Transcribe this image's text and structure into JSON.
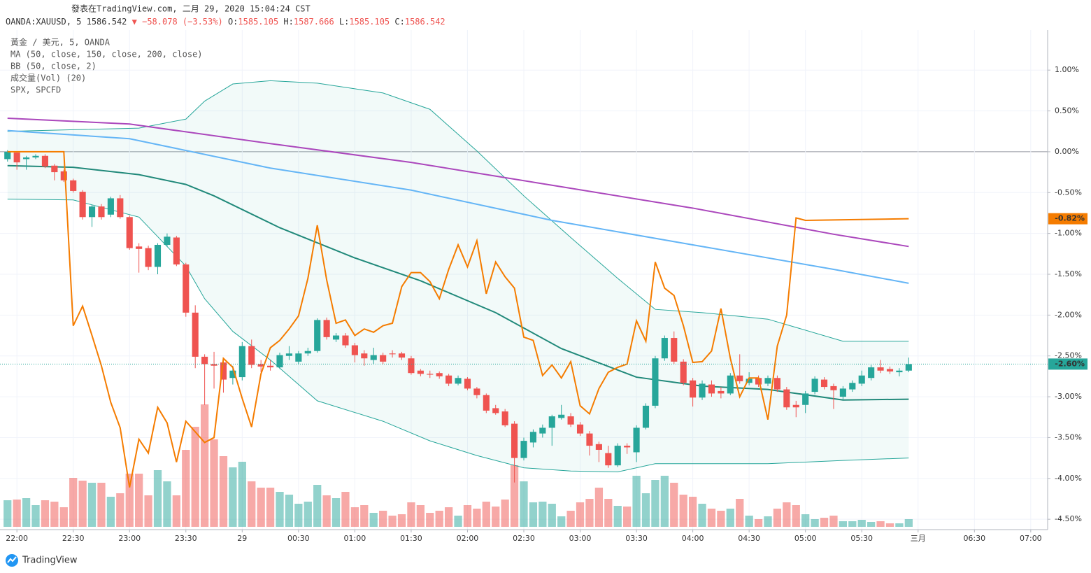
{
  "chart_data": {
    "type": "candlestick",
    "title": "發表在TradingView.com, 二月 29, 2020 15:04:24 CST",
    "symbol": "OANDA:XAUUSD, 5",
    "price": "1586.542",
    "change_arrow": "▼",
    "change": "−58.078 (−3.53%)",
    "quote": [
      {
        "label": "O:",
        "value": "1585.105"
      },
      {
        "label": "H:",
        "value": "1587.666"
      },
      {
        "label": "L:",
        "value": "1585.105"
      },
      {
        "label": "C:",
        "value": "1586.542"
      }
    ],
    "indicators": [
      "黃金 / 美元, 5, OANDA",
      "MA (50, close, 150, close, 200, close)",
      "BB (50, close, 2)",
      "成交量(Vol) (20)",
      "SPX, SPCFD"
    ],
    "categories": [
      "21:55",
      "22:00",
      "22:05",
      "22:10",
      "22:15",
      "22:20",
      "22:25",
      "22:30",
      "22:35",
      "22:40",
      "22:45",
      "22:50",
      "22:55",
      "23:00",
      "23:05",
      "23:10",
      "23:15",
      "23:20",
      "23:25",
      "23:30",
      "23:35",
      "23:40",
      "23:45",
      "23:50",
      "23:55",
      "00:00",
      "00:05",
      "00:10",
      "00:15",
      "00:20",
      "00:25",
      "00:30",
      "00:35",
      "00:40",
      "00:45",
      "00:50",
      "00:55",
      "01:00",
      "01:05",
      "01:10",
      "01:15",
      "01:20",
      "01:25",
      "01:30",
      "01:35",
      "01:40",
      "01:45",
      "01:50",
      "01:55",
      "02:00",
      "02:05",
      "02:10",
      "02:15",
      "02:20",
      "02:25",
      "02:30",
      "02:35",
      "02:40",
      "02:45",
      "02:50",
      "02:55",
      "03:00",
      "03:05",
      "03:10",
      "03:15",
      "03:20",
      "03:25",
      "03:30",
      "03:35",
      "03:40",
      "03:45",
      "03:50",
      "03:55",
      "04:00",
      "04:05",
      "04:10",
      "04:15",
      "04:20",
      "04:25",
      "04:30",
      "04:35",
      "04:40",
      "04:45",
      "04:50",
      "04:55",
      "05:00",
      "05:05",
      "05:10",
      "05:15",
      "05:20",
      "05:25",
      "05:30",
      "05:35",
      "05:40",
      "05:45",
      "05:50",
      "05:55"
    ],
    "open": [
      -0.09,
      -0.01,
      -0.09,
      -0.07,
      -0.05,
      -0.17,
      -0.24,
      -0.35,
      -0.49,
      -0.8,
      -0.67,
      -0.77,
      -0.57,
      -0.8,
      -1.16,
      -1.18,
      -1.41,
      -1.14,
      -1.05,
      -1.38,
      -1.97,
      -2.51,
      -2.6,
      -2.58,
      -2.77,
      -2.76,
      -2.38,
      -2.6,
      -2.62,
      -2.64,
      -2.5,
      -2.57,
      -2.47,
      -2.44,
      -2.06,
      -2.3,
      -2.25,
      -2.37,
      -2.47,
      -2.55,
      -2.49,
      -2.47,
      -2.47,
      -2.53,
      -2.68,
      -2.72,
      -2.71,
      -2.74,
      -2.84,
      -2.78,
      -2.9,
      -2.98,
      -3.14,
      -3.18,
      -3.33,
      -3.75,
      -3.56,
      -3.45,
      -3.38,
      -3.26,
      -3.24,
      -3.34,
      -3.45,
      -3.58,
      -3.69,
      -3.84,
      -3.6,
      -3.68,
      -3.38,
      -3.11,
      -2.53,
      -2.28,
      -2.57,
      -2.8,
      -3.01,
      -2.85,
      -2.93,
      -2.96,
      -2.74,
      -2.83,
      -2.77,
      -2.84,
      -2.77,
      -2.91,
      -3.1,
      -3.1,
      -2.94,
      -2.79,
      -2.87,
      -3.0,
      -2.91,
      -2.84,
      -2.77,
      -2.64,
      -2.66,
      -2.7,
      -2.68
    ],
    "high": [
      0.02,
      0.0,
      -0.05,
      -0.03,
      -0.03,
      -0.15,
      -0.22,
      -0.33,
      -0.47,
      -0.65,
      -0.64,
      -0.55,
      -0.53,
      -0.78,
      -1.12,
      -1.15,
      -1.12,
      -1.0,
      -1.03,
      -1.36,
      -1.88,
      -2.48,
      -2.45,
      -2.54,
      -2.62,
      -2.33,
      -2.3,
      -2.55,
      -2.55,
      -2.46,
      -2.38,
      -2.44,
      -2.4,
      -2.04,
      -2.03,
      -2.22,
      -2.22,
      -2.34,
      -2.43,
      -2.4,
      -2.46,
      -2.43,
      -2.45,
      -2.5,
      -2.66,
      -2.68,
      -2.69,
      -2.72,
      -2.74,
      -2.76,
      -2.88,
      -2.96,
      -3.1,
      -3.15,
      -3.3,
      -3.5,
      -3.4,
      -3.34,
      -3.22,
      -3.1,
      -3.2,
      -3.31,
      -3.42,
      -3.55,
      -3.6,
      -3.57,
      -3.57,
      -3.35,
      -3.08,
      -2.5,
      -2.25,
      -2.2,
      -2.54,
      -2.77,
      -2.8,
      -2.8,
      -2.88,
      -2.71,
      -2.48,
      -2.7,
      -2.74,
      -2.74,
      -2.74,
      -2.88,
      -3.05,
      -2.93,
      -2.75,
      -2.76,
      -2.84,
      -2.87,
      -2.8,
      -2.68,
      -2.61,
      -2.55,
      -2.63,
      -2.65,
      -2.52
    ],
    "low": [
      -0.12,
      -0.22,
      -0.22,
      -0.09,
      -0.2,
      -0.35,
      -0.37,
      -0.5,
      -0.83,
      -0.92,
      -0.83,
      -0.8,
      -0.82,
      -1.2,
      -1.48,
      -1.45,
      -1.5,
      -1.16,
      -1.4,
      -2.02,
      -2.65,
      -3.1,
      -2.9,
      -2.95,
      -2.85,
      -2.8,
      -2.65,
      -2.7,
      -2.68,
      -2.66,
      -2.55,
      -2.6,
      -2.5,
      -2.46,
      -2.3,
      -2.33,
      -2.4,
      -2.58,
      -2.62,
      -2.6,
      -2.6,
      -2.52,
      -2.55,
      -2.73,
      -2.75,
      -2.77,
      -2.78,
      -2.87,
      -2.86,
      -2.92,
      -3.02,
      -3.2,
      -3.22,
      -3.37,
      -4.05,
      -3.78,
      -3.62,
      -3.5,
      -3.6,
      -3.28,
      -3.37,
      -3.48,
      -3.72,
      -3.8,
      -3.87,
      -3.86,
      -3.7,
      -3.8,
      -3.4,
      -3.14,
      -2.56,
      -2.6,
      -2.86,
      -3.12,
      -3.04,
      -3.0,
      -3.02,
      -2.98,
      -2.84,
      -2.86,
      -2.88,
      -2.87,
      -2.94,
      -3.16,
      -3.25,
      -3.2,
      -2.97,
      -2.91,
      -3.15,
      -3.03,
      -2.94,
      -2.87,
      -2.8,
      -2.71,
      -2.72,
      -2.75,
      -2.7
    ],
    "close": [
      0.0,
      -0.13,
      -0.07,
      -0.05,
      -0.18,
      -0.25,
      -0.35,
      -0.48,
      -0.8,
      -0.67,
      -0.8,
      -0.57,
      -0.8,
      -1.18,
      -1.19,
      -1.41,
      -1.14,
      -1.04,
      -1.38,
      -1.97,
      -2.51,
      -2.6,
      -2.62,
      -2.79,
      -2.68,
      -2.38,
      -2.61,
      -2.63,
      -2.64,
      -2.49,
      -2.47,
      -2.47,
      -2.44,
      -2.06,
      -2.27,
      -2.25,
      -2.37,
      -2.49,
      -2.53,
      -2.49,
      -2.57,
      -2.48,
      -2.52,
      -2.71,
      -2.72,
      -2.73,
      -2.75,
      -2.84,
      -2.77,
      -2.9,
      -2.98,
      -3.17,
      -3.2,
      -3.35,
      -3.75,
      -3.54,
      -3.43,
      -3.38,
      -3.24,
      -3.22,
      -3.34,
      -3.45,
      -3.6,
      -3.65,
      -3.84,
      -3.6,
      -3.62,
      -3.38,
      -3.11,
      -2.53,
      -2.28,
      -2.57,
      -2.83,
      -3.01,
      -2.84,
      -2.96,
      -2.96,
      -2.74,
      -2.81,
      -2.78,
      -2.85,
      -2.77,
      -2.91,
      -3.13,
      -3.13,
      -2.96,
      -2.78,
      -2.88,
      -2.92,
      -2.9,
      -2.83,
      -2.74,
      -2.64,
      -2.68,
      -2.69,
      -2.68,
      -2.6
    ],
    "close_label": "-2.60%",
    "volume": [
      38,
      39,
      41,
      31,
      38,
      36,
      28,
      70,
      66,
      63,
      63,
      43,
      48,
      76,
      76,
      45,
      81,
      65,
      45,
      110,
      143,
      175,
      125,
      101,
      85,
      93,
      65,
      56,
      56,
      50,
      46,
      33,
      36,
      60,
      45,
      41,
      50,
      28,
      31,
      20,
      23,
      16,
      18,
      35,
      31,
      20,
      23,
      28,
      16,
      31,
      26,
      36,
      29,
      39,
      88,
      65,
      35,
      36,
      33,
      15,
      23,
      35,
      40,
      56,
      40,
      30,
      29,
      73,
      48,
      67,
      73,
      63,
      46,
      43,
      33,
      26,
      23,
      26,
      40,
      16,
      11,
      15,
      26,
      35,
      31,
      18,
      11,
      13,
      16,
      8,
      8,
      10,
      7,
      8,
      5,
      5,
      11
    ],
    "up_color": "#26a69a",
    "down_color": "#ef5350",
    "band": {
      "color": "#26a69a",
      "x": [
        "21:55",
        "22:30",
        "23:05",
        "23:30",
        "23:40",
        "23:55",
        "00:15",
        "00:40",
        "01:15",
        "01:40",
        "02:05",
        "02:30",
        "02:55",
        "03:20",
        "03:40",
        "04:05",
        "04:40",
        "05:20",
        "05:55"
      ],
      "upper": [
        0.25,
        0.27,
        0.29,
        0.4,
        0.62,
        0.83,
        0.87,
        0.84,
        0.72,
        0.52,
        0.01,
        -0.54,
        -1.05,
        -1.55,
        -1.93,
        -1.97,
        -2.05,
        -2.32,
        -2.32
      ],
      "lower": [
        -0.58,
        -0.59,
        -0.8,
        -1.4,
        -1.8,
        -2.2,
        -2.55,
        -3.05,
        -3.3,
        -3.54,
        -3.72,
        -3.87,
        -3.91,
        -3.92,
        -3.82,
        -3.82,
        -3.82,
        -3.78,
        -3.75
      ]
    },
    "lines": [
      {
        "color": "#21897a",
        "x": [
          "21:55",
          "22:30",
          "23:05",
          "23:30",
          "23:45",
          "00:20",
          "01:00",
          "01:35",
          "02:15",
          "02:50",
          "03:30",
          "04:05",
          "04:40",
          "05:20",
          "05:55"
        ],
        "values": [
          -0.17,
          -0.19,
          -0.28,
          -0.4,
          -0.54,
          -0.93,
          -1.3,
          -1.58,
          -1.97,
          -2.41,
          -2.76,
          -2.87,
          -2.91,
          -3.04,
          -3.03
        ]
      },
      {
        "color": "#64b5f6",
        "x": [
          "21:55",
          "23:00",
          "00:15",
          "01:30",
          "02:45",
          "04:00",
          "05:15",
          "05:55"
        ],
        "values": [
          0.26,
          0.16,
          -0.2,
          -0.47,
          -0.84,
          -1.14,
          -1.44,
          -1.61
        ]
      },
      {
        "color": "#ab47bc",
        "x": [
          "21:55",
          "23:00",
          "00:15",
          "01:30",
          "02:45",
          "04:00",
          "05:15",
          "05:55"
        ],
        "values": [
          0.41,
          0.34,
          0.1,
          -0.13,
          -0.41,
          -0.69,
          -1.01,
          -1.16
        ]
      }
    ],
    "spx": {
      "color": "#f57c00",
      "label": "-0.82%",
      "x": [
        "21:55",
        "22:25",
        "22:30",
        "22:35",
        "22:40",
        "22:45",
        "22:50",
        "22:55",
        "23:00",
        "23:05",
        "23:10",
        "23:15",
        "23:20",
        "23:25",
        "23:30",
        "23:35",
        "23:40",
        "23:45",
        "23:50",
        "23:55",
        "00:00",
        "00:05",
        "00:10",
        "00:15",
        "00:20",
        "00:25",
        "00:30",
        "00:35",
        "00:40",
        "00:45",
        "00:50",
        "00:55",
        "01:00",
        "01:05",
        "01:10",
        "01:15",
        "01:20",
        "01:25",
        "01:30",
        "01:35",
        "01:40",
        "01:45",
        "01:50",
        "01:55",
        "02:00",
        "02:05",
        "02:10",
        "02:15",
        "02:20",
        "02:25",
        "02:30",
        "02:35",
        "02:40",
        "02:45",
        "02:50",
        "02:55",
        "03:00",
        "03:05",
        "03:10",
        "03:15",
        "03:20",
        "03:25",
        "03:30",
        "03:35",
        "03:40",
        "03:45",
        "03:50",
        "03:55",
        "04:00",
        "04:05",
        "04:10",
        "04:15",
        "04:20",
        "04:25",
        "04:30",
        "04:35",
        "04:40",
        "04:45",
        "04:50",
        "04:55",
        "05:00",
        "05:55"
      ],
      "values": [
        0,
        0,
        -2.13,
        -1.89,
        -2.25,
        -2.62,
        -3.07,
        -3.38,
        -4.11,
        -3.52,
        -3.69,
        -3.13,
        -3.32,
        -3.8,
        -3.3,
        -3.43,
        -3.56,
        -3.5,
        -2.53,
        -2.64,
        -3.02,
        -3.37,
        -2.72,
        -2.4,
        -2.31,
        -2.17,
        -2.01,
        -1.55,
        -0.9,
        -1.57,
        -2.1,
        -2.06,
        -2.25,
        -2.17,
        -2.21,
        -2.13,
        -2.1,
        -1.65,
        -1.48,
        -1.48,
        -1.59,
        -1.8,
        -1.44,
        -1.14,
        -1.41,
        -1.09,
        -1.74,
        -1.35,
        -1.53,
        -1.67,
        -2.27,
        -2.31,
        -2.74,
        -2.61,
        -2.77,
        -2.57,
        -3.11,
        -3.21,
        -2.9,
        -2.7,
        -2.64,
        -2.6,
        -2.07,
        -2.32,
        -1.35,
        -1.67,
        -1.76,
        -2.13,
        -2.58,
        -2.57,
        -2.44,
        -1.92,
        -2.53,
        -3.0,
        -2.77,
        -2.77,
        -3.28,
        -2.38,
        -2.0,
        -0.81,
        -0.84,
        -0.82
      ]
    },
    "ylim": [
      -4.61,
      1.49
    ],
    "yticks": [
      {
        "value": 1,
        "label": "1.00%"
      },
      {
        "value": 0.5,
        "label": "0.50%"
      },
      {
        "value": 0,
        "label": "0.00%"
      },
      {
        "value": -0.5,
        "label": "-0.50%"
      },
      {
        "value": -1,
        "label": "-1.00%"
      },
      {
        "value": -1.5,
        "label": "-1.50%"
      },
      {
        "value": -2,
        "label": "-2.00%"
      },
      {
        "value": -2.5,
        "label": "-2.50%"
      },
      {
        "value": -3,
        "label": "-3.00%"
      },
      {
        "value": -3.5,
        "label": "-3.50%"
      },
      {
        "value": -4,
        "label": "-4.00%"
      },
      {
        "value": -4.5,
        "label": "-4.50%"
      }
    ],
    "xlim": [
      "21:51",
      "07:09"
    ],
    "xticks": [
      "22:00",
      "22:30",
      "23:00",
      "23:30",
      {
        "value": "00:00",
        "label": "29"
      },
      "00:30",
      "01:00",
      "01:30",
      "02:00",
      "02:30",
      "03:00",
      "03:30",
      "04:00",
      "04:30",
      "05:00",
      "05:30",
      {
        "value": "06:00",
        "label": "三月"
      },
      "06:30",
      "07:00"
    ],
    "grid": true
  },
  "footer": {
    "brand": "TradingView"
  }
}
